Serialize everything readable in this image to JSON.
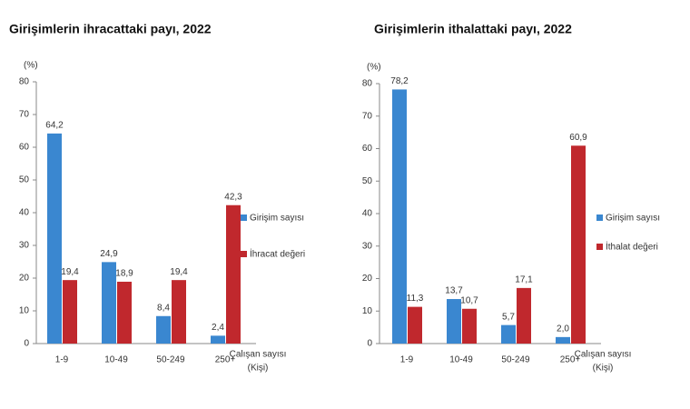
{
  "chart_data": [
    {
      "type": "bar",
      "title": "Girişimlerin ihracattaki payı, 2022",
      "y_label": "(%)",
      "x_label": [
        "Çalışan sayısı",
        "(Kişi)"
      ],
      "categories": [
        "1-9",
        "10-49",
        "50-249",
        "250+"
      ],
      "series": [
        {
          "name": "Girişim sayısı",
          "color": "#3a87d0",
          "values": [
            64.2,
            24.9,
            8.4,
            2.4
          ],
          "value_labels": [
            "64,2",
            "24,9",
            "8,4",
            "2,4"
          ]
        },
        {
          "name": "İhracat değeri",
          "color": "#c0282d",
          "values": [
            19.4,
            18.9,
            19.4,
            42.3
          ],
          "value_labels": [
            "19,4",
            "18,9",
            "19,4",
            "42,3"
          ]
        }
      ],
      "ylim": [
        0,
        80
      ],
      "yticks": [
        0,
        10,
        20,
        30,
        40,
        50,
        60,
        70,
        80
      ],
      "legend": "right"
    },
    {
      "type": "bar",
      "title": "Girişimlerin ithalattaki payı, 2022",
      "y_label": "(%)",
      "x_label": [
        "Çalışan sayısı",
        "(Kişi)"
      ],
      "categories": [
        "1-9",
        "10-49",
        "50-249",
        "250+"
      ],
      "series": [
        {
          "name": "Girişim sayısı",
          "color": "#3a87d0",
          "values": [
            78.2,
            13.7,
            5.7,
            2.0
          ],
          "value_labels": [
            "78,2",
            "13,7",
            "5,7",
            "2,0"
          ]
        },
        {
          "name": "İthalat değeri",
          "color": "#c0282d",
          "values": [
            11.3,
            10.7,
            17.1,
            60.9
          ],
          "value_labels": [
            "11,3",
            "10,7",
            "17,1",
            "60,9"
          ]
        }
      ],
      "ylim": [
        0,
        80
      ],
      "yticks": [
        0,
        10,
        20,
        30,
        40,
        50,
        60,
        70,
        80
      ],
      "legend": "right"
    }
  ]
}
